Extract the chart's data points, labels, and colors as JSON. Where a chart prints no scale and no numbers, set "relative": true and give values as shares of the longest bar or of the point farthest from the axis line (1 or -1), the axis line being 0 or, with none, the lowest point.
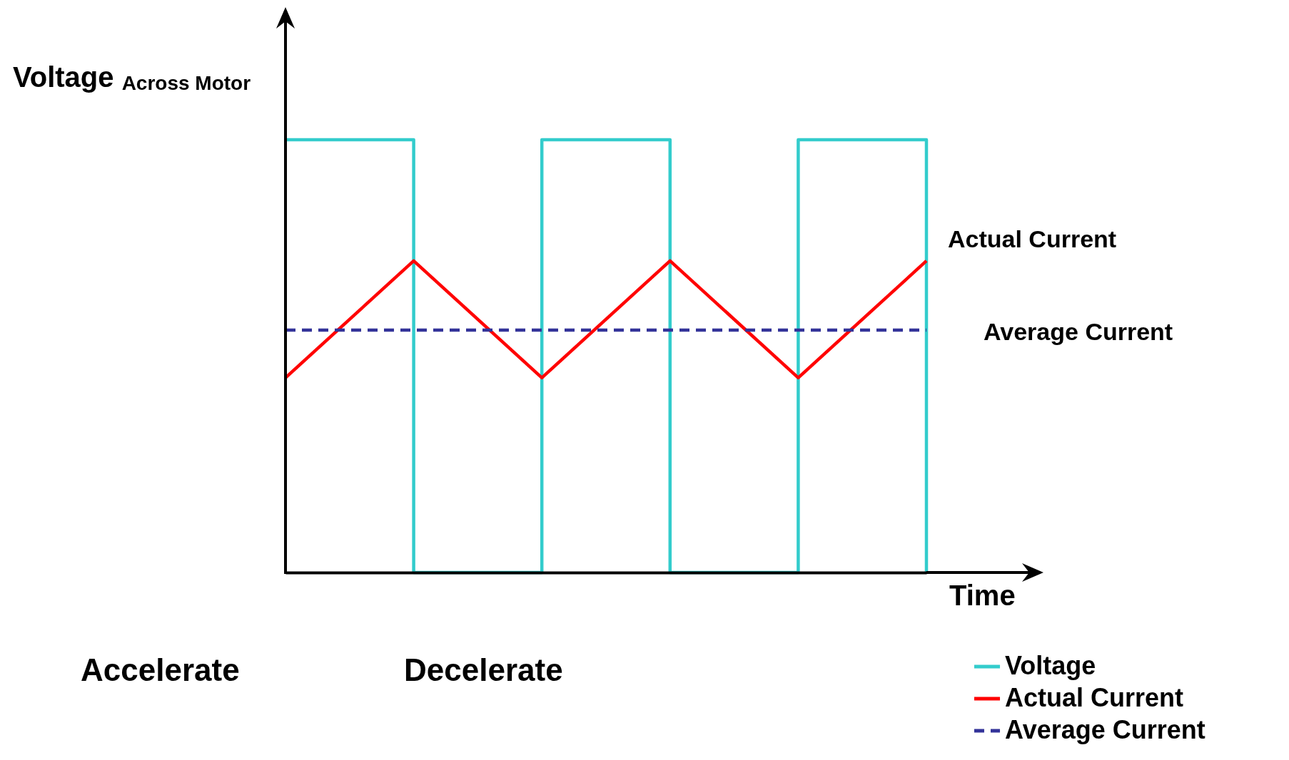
{
  "chart_data": {
    "type": "line",
    "relative": true,
    "ylabel": "Voltage $_{Across Motor}$",
    "xlabel": "Time",
    "categories": [
      null,
      null,
      null,
      null,
      null,
      null
    ],
    "series": [
      {
        "name": "Voltage",
        "type": "step",
        "color": "#33cccc",
        "values": [
          1,
          0,
          1,
          0,
          1,
          0
        ]
      },
      {
        "name": "Actual Current",
        "type": "line",
        "color": "#ff0000",
        "values": [
          0.45,
          0.72,
          0.45,
          0.72,
          0.45,
          0.72
        ]
      },
      {
        "name": "Average Current",
        "type": "line",
        "line_style": "dashed",
        "color": "#333399",
        "values": [
          0.56,
          0.56,
          0.56,
          0.56,
          0.56,
          0.56
        ]
      }
    ],
    "annotations": [
      "Actual Current",
      "Average Current",
      "Accelerate",
      "Decelerate"
    ],
    "legend": "bottom right",
    "grid": false
  }
}
